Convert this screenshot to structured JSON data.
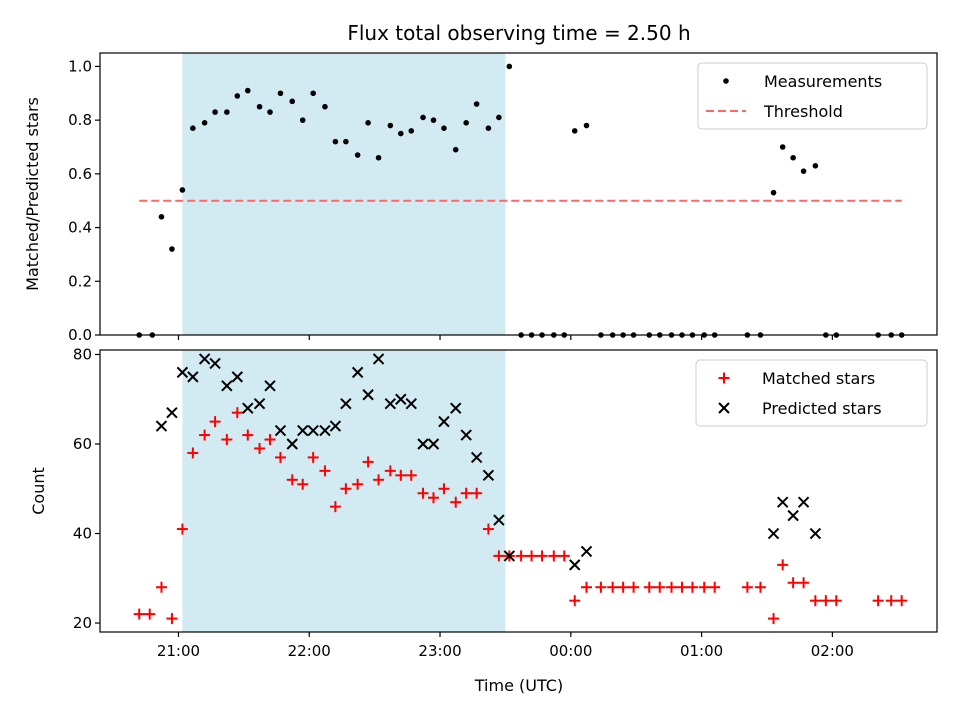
{
  "chart_data": {
    "type": "scatter",
    "title": "Flux total observing time = 2.50 h",
    "xlabel": "Time (UTC)",
    "x_unit": "hours UTC since 21:00; negative = before 21:00, values above 3 = after midnight",
    "x_range": [
      -0.6,
      5.8
    ],
    "x_ticks": [
      {
        "x": 0,
        "label": "21:00"
      },
      {
        "x": 1,
        "label": "22:00"
      },
      {
        "x": 2,
        "label": "23:00"
      },
      {
        "x": 3,
        "label": "00:00"
      },
      {
        "x": 4,
        "label": "01:00"
      },
      {
        "x": 5,
        "label": "02:00"
      }
    ],
    "shaded_span": {
      "x_start": 0.03,
      "x_end": 2.5,
      "color": "#add8e6"
    },
    "panels": [
      {
        "ylabel": "Matched/Predicted stars",
        "ylim": [
          0,
          1.05
        ],
        "y_ticks": [
          "0.0",
          "0.2",
          "0.4",
          "0.6",
          "0.8",
          "1.0"
        ],
        "y_tick_values": [
          0,
          0.2,
          0.4,
          0.6,
          0.8,
          1.0
        ],
        "legend": {
          "position": "top-right"
        },
        "series": [
          {
            "name": "Measurements",
            "marker": "dot",
            "color": "#000000",
            "points": [
              [
                -0.3,
                0
              ],
              [
                -0.2,
                0
              ],
              [
                -0.13,
                0.44
              ],
              [
                -0.05,
                0.32
              ],
              [
                0.03,
                0.54
              ],
              [
                0.11,
                0.77
              ],
              [
                0.2,
                0.79
              ],
              [
                0.28,
                0.83
              ],
              [
                0.37,
                0.83
              ],
              [
                0.45,
                0.89
              ],
              [
                0.53,
                0.91
              ],
              [
                0.62,
                0.85
              ],
              [
                0.7,
                0.83
              ],
              [
                0.78,
                0.9
              ],
              [
                0.87,
                0.87
              ],
              [
                0.95,
                0.8
              ],
              [
                1.03,
                0.9
              ],
              [
                1.12,
                0.85
              ],
              [
                1.2,
                0.72
              ],
              [
                1.28,
                0.72
              ],
              [
                1.37,
                0.67
              ],
              [
                1.45,
                0.79
              ],
              [
                1.53,
                0.66
              ],
              [
                1.62,
                0.78
              ],
              [
                1.7,
                0.75
              ],
              [
                1.78,
                0.76
              ],
              [
                1.87,
                0.81
              ],
              [
                1.95,
                0.8
              ],
              [
                2.03,
                0.77
              ],
              [
                2.12,
                0.69
              ],
              [
                2.2,
                0.79
              ],
              [
                2.28,
                0.86
              ],
              [
                2.37,
                0.77
              ],
              [
                2.45,
                0.81
              ],
              [
                2.53,
                1.0
              ],
              [
                2.62,
                0
              ],
              [
                2.7,
                0
              ],
              [
                2.78,
                0
              ],
              [
                2.87,
                0
              ],
              [
                2.95,
                0
              ],
              [
                3.03,
                0.76
              ],
              [
                3.12,
                0.78
              ],
              [
                3.23,
                0
              ],
              [
                3.32,
                0
              ],
              [
                3.4,
                0
              ],
              [
                3.48,
                0
              ],
              [
                3.6,
                0
              ],
              [
                3.68,
                0
              ],
              [
                3.77,
                0
              ],
              [
                3.85,
                0
              ],
              [
                3.93,
                0
              ],
              [
                4.02,
                0
              ],
              [
                4.1,
                0
              ],
              [
                4.35,
                0
              ],
              [
                4.45,
                0
              ],
              [
                4.55,
                0.53
              ],
              [
                4.62,
                0.7
              ],
              [
                4.7,
                0.66
              ],
              [
                4.78,
                0.61
              ],
              [
                4.87,
                0.63
              ],
              [
                4.95,
                0
              ],
              [
                5.03,
                0
              ],
              [
                5.35,
                0
              ],
              [
                5.45,
                0
              ],
              [
                5.53,
                0
              ]
            ]
          },
          {
            "name": "Threshold",
            "marker": "dashed-line",
            "color": "#ff6666",
            "points": [
              [
                -0.3,
                0.5
              ],
              [
                5.53,
                0.5
              ]
            ]
          }
        ]
      },
      {
        "ylabel": "Count",
        "ylim": [
          18,
          81
        ],
        "y_ticks": [
          "20",
          "40",
          "60",
          "80"
        ],
        "y_tick_values": [
          20,
          40,
          60,
          80
        ],
        "legend": {
          "position": "top-right"
        },
        "series": [
          {
            "name": "Matched stars",
            "marker": "plus",
            "color": "#ff0000",
            "points": [
              [
                -0.3,
                22
              ],
              [
                -0.22,
                22
              ],
              [
                -0.13,
                28
              ],
              [
                -0.05,
                21
              ],
              [
                0.03,
                41
              ],
              [
                0.11,
                58
              ],
              [
                0.2,
                62
              ],
              [
                0.28,
                65
              ],
              [
                0.37,
                61
              ],
              [
                0.45,
                67
              ],
              [
                0.53,
                62
              ],
              [
                0.62,
                59
              ],
              [
                0.7,
                61
              ],
              [
                0.78,
                57
              ],
              [
                0.87,
                52
              ],
              [
                0.95,
                51
              ],
              [
                1.03,
                57
              ],
              [
                1.12,
                54
              ],
              [
                1.2,
                46
              ],
              [
                1.28,
                50
              ],
              [
                1.37,
                51
              ],
              [
                1.45,
                56
              ],
              [
                1.53,
                52
              ],
              [
                1.62,
                54
              ],
              [
                1.7,
                53
              ],
              [
                1.78,
                53
              ],
              [
                1.87,
                49
              ],
              [
                1.95,
                48
              ],
              [
                2.03,
                50
              ],
              [
                2.12,
                47
              ],
              [
                2.2,
                49
              ],
              [
                2.28,
                49
              ],
              [
                2.37,
                41
              ],
              [
                2.45,
                35
              ],
              [
                2.53,
                35
              ],
              [
                2.62,
                35
              ],
              [
                2.7,
                35
              ],
              [
                2.78,
                35
              ],
              [
                2.87,
                35
              ],
              [
                2.95,
                35
              ],
              [
                3.03,
                25
              ],
              [
                3.12,
                28
              ],
              [
                3.23,
                28
              ],
              [
                3.32,
                28
              ],
              [
                3.4,
                28
              ],
              [
                3.48,
                28
              ],
              [
                3.6,
                28
              ],
              [
                3.68,
                28
              ],
              [
                3.77,
                28
              ],
              [
                3.85,
                28
              ],
              [
                3.93,
                28
              ],
              [
                4.02,
                28
              ],
              [
                4.1,
                28
              ],
              [
                4.35,
                28
              ],
              [
                4.45,
                28
              ],
              [
                4.55,
                21
              ],
              [
                4.62,
                33
              ],
              [
                4.7,
                29
              ],
              [
                4.78,
                29
              ],
              [
                4.87,
                25
              ],
              [
                4.95,
                25
              ],
              [
                5.03,
                25
              ],
              [
                5.35,
                25
              ],
              [
                5.45,
                25
              ],
              [
                5.53,
                25
              ]
            ]
          },
          {
            "name": "Predicted stars",
            "marker": "x",
            "color": "#000000",
            "points": [
              [
                -0.13,
                64
              ],
              [
                -0.05,
                67
              ],
              [
                0.03,
                76
              ],
              [
                0.11,
                75
              ],
              [
                0.2,
                79
              ],
              [
                0.28,
                78
              ],
              [
                0.37,
                73
              ],
              [
                0.45,
                75
              ],
              [
                0.53,
                68
              ],
              [
                0.62,
                69
              ],
              [
                0.7,
                73
              ],
              [
                0.78,
                63
              ],
              [
                0.87,
                60
              ],
              [
                0.95,
                63
              ],
              [
                1.03,
                63
              ],
              [
                1.12,
                63
              ],
              [
                1.2,
                64
              ],
              [
                1.28,
                69
              ],
              [
                1.37,
                76
              ],
              [
                1.45,
                71
              ],
              [
                1.53,
                79
              ],
              [
                1.62,
                69
              ],
              [
                1.7,
                70
              ],
              [
                1.78,
                69
              ],
              [
                1.87,
                60
              ],
              [
                1.95,
                60
              ],
              [
                2.03,
                65
              ],
              [
                2.12,
                68
              ],
              [
                2.2,
                62
              ],
              [
                2.28,
                57
              ],
              [
                2.37,
                53
              ],
              [
                2.45,
                43
              ],
              [
                2.53,
                35
              ],
              [
                3.03,
                33
              ],
              [
                3.12,
                36
              ],
              [
                4.55,
                40
              ],
              [
                4.62,
                47
              ],
              [
                4.7,
                44
              ],
              [
                4.78,
                47
              ],
              [
                4.87,
                40
              ]
            ]
          }
        ]
      }
    ]
  }
}
